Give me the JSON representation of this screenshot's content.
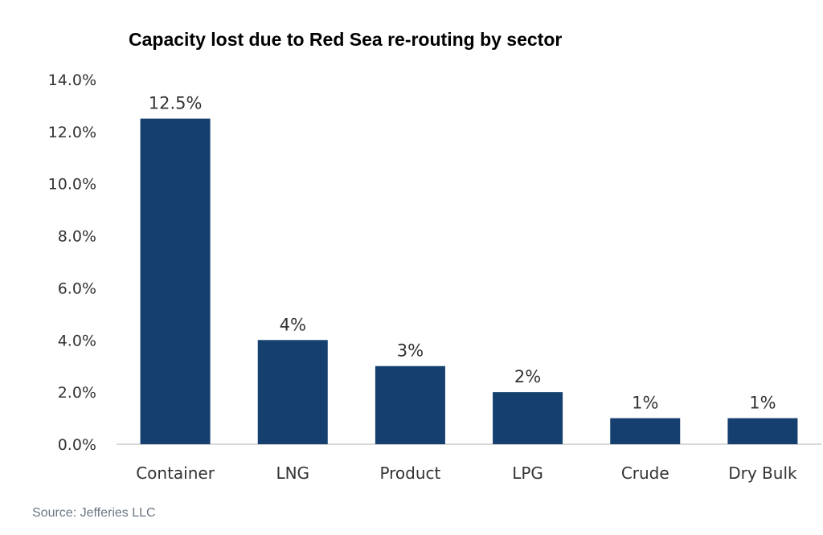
{
  "chart_data": {
    "type": "bar",
    "title": "Capacity lost due to Red Sea re-routing by sector",
    "categories": [
      "Container",
      "LNG",
      "Product",
      "LPG",
      "Crude",
      "Dry Bulk"
    ],
    "values": [
      12.5,
      4,
      3,
      2,
      1,
      1
    ],
    "data_labels": [
      "12.5%",
      "4%",
      "3%",
      "2%",
      "1%",
      "1%"
    ],
    "y_ticks": [
      "0.0%",
      "2.0%",
      "4.0%",
      "6.0%",
      "8.0%",
      "10.0%",
      "12.0%",
      "14.0%"
    ],
    "ylim": [
      0,
      14
    ],
    "xlabel": "",
    "ylabel": "",
    "grid": false,
    "legend": "none",
    "bar_color": "#143f6e"
  },
  "source": "Source: Jefferies LLC"
}
